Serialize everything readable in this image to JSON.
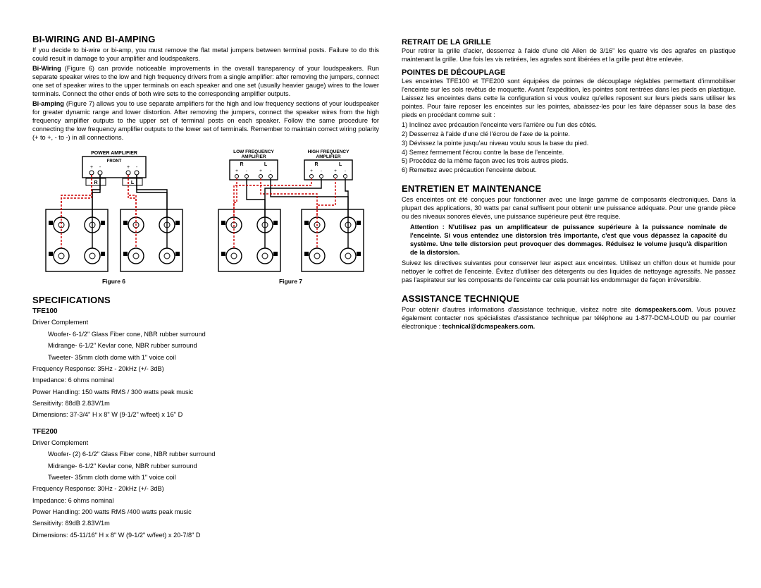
{
  "left": {
    "h_biwiring": "BI-WIRING AND BI-AMPING",
    "p1": "If you decide to bi-wire or bi-amp, you must remove the flat metal jumpers between terminal posts. Failure to do this could result in damage to your amplifier and loudspeakers.",
    "p2_bold": "Bi-Wiring",
    "p2": " (Figure 6) can provide noticeable improvements in the overall transparency of your loudspeakers. Run separate speaker wires to the low and high frequency drivers from a single amplifier: after removing the jumpers, connect one set of speaker wires to the upper terminals on each speaker and one set (usually heavier gauge) wires to the lower terminals. Connect the other ends of both wire sets to the corresponding amplifier outputs.",
    "p3_bold": "Bi-amping",
    "p3": " (Figure 7) allows you to use separate amplifiers for the high and low frequency sections of your loudspeaker for greater dynamic range and lower distortion. After removing the jumpers, connect the speaker wires from the high frequency amplifier outputs to the upper set of terminal posts on each speaker. Follow the same procedure for connecting the low frequency amplifier outputs to the lower set of terminals. Remember to maintain correct wiring polarity (+ to +, - to -) in all connections.",
    "fig6_label": "Figure 6",
    "fig7_label": "Figure 7",
    "amp_labels": {
      "power": "POWER AMPLIFIER",
      "lowfreq": "LOW FREQUENCY\nAMPLIFIER",
      "highfreq": "HIGH FREQUENCY\nAMPLIFIER",
      "front": "FRONT",
      "R": "R",
      "L": "L",
      "plus": "+",
      "minus": "-"
    },
    "h_specs": "SPECIFICATIONS",
    "tfe100": {
      "title": "TFE100",
      "lines": [
        "Driver Complement",
        "Woofer- 6-1/2\" Glass Fiber cone, NBR rubber surround",
        "Midrange- 6-1/2\" Kevlar cone, NBR rubber surround",
        "Tweeter- 35mm cloth dome with 1\" voice coil",
        "Frequency Response: 35Hz - 20kHz (+/- 3dB)",
        "Impedance: 6 ohms nominal",
        "Power Handling: 150 watts RMS / 300 watts peak music",
        "Sensitivity: 88dB 2.83V/1m",
        "Dimensions: 37-3/4\" H x 8\" W (9-1/2\" w/feet)  x 16\" D"
      ],
      "indent_idx": [
        1,
        2,
        3
      ]
    },
    "tfe200": {
      "title": "TFE200",
      "lines": [
        "Driver Complement",
        "Woofer- (2) 6-1/2\" Glass Fiber cone, NBR rubber surround",
        "Midrange- 6-1/2\" Kevlar cone, NBR rubber surround",
        "Tweeter-  35mm cloth dome with 1\" voice coil",
        "Frequency Response: 30Hz - 20kHz (+/- 3dB)",
        "Impedance: 6 ohms nominal",
        "Power Handling: 200 watts RMS /400 watts peak music",
        "Sensitivity: 89dB 2.83V/1m",
        "Dimensions: 45-11/16\" H x 8\" W (9-1/2\" w/feet) x 20-7/8\" D"
      ],
      "indent_idx": [
        1,
        2,
        3
      ]
    }
  },
  "right": {
    "h_retrait": "RETRAIT DE LA GRILLE",
    "p_retrait": "Pour retirer la grille d'acier, desserrez à l'aide d'une clé Allen de 3/16\" les quatre vis des agrafes en plastique maintenant la grille. Une fois les vis retirées, les agrafes sont libérées et la grille peut être enlevée.",
    "h_pointes": "POINTES DE DÉCOUPLAGE",
    "p_pointes": "Les enceintes TFE100 et TFE200 sont équipées de pointes de découplage réglables permettant d'immobiliser l'enceinte sur les sols revêtus de moquette. Avant l'expédition, les pointes sont rentrées dans les pieds en plastique. Laissez les enceintes dans cette la configuration si vous voulez qu'elles reposent sur leurs pieds sans utiliser les pointes. Pour faire reposer les enceintes sur les pointes, abaissez-les pour les faire dépasser sous la base des pieds en procédant comme suit :",
    "steps": [
      "1) Inclinez avec précaution l'enceinte vers l'arrière ou l'un des côtés.",
      "2) Desserrez à l'aide d'une clé l'écrou de l'axe de la pointe.",
      "3) Dévissez la pointe jusqu'au niveau voulu sous la base du pied.",
      "4) Serrez fermement l'écrou contre la base de l'enceinte.",
      "5) Procédez de la même façon avec les trois autres pieds.",
      "6) Remettez avec précaution l'enceinte debout."
    ],
    "h_entretien": "ENTRETIEN ET MAINTENANCE",
    "p_ent1": "Ces enceintes ont été conçues pour fonctionner avec une large gamme de composants électroniques. Dans la plupart des applications, 30 watts par canal suffisent pour obtenir une puissance adéquate. Pour une grande pièce ou des niveaux sonores élevés, une puissance supérieure peut être requise.",
    "p_ent_bold": "Attention : N'utilisez pas un amplificateur de puissance supérieure à la puissance nominale de l'enceinte. Si vous entendez une distorsion très importante, c'est que vous dépassez la capacité du système. Une telle distorsion peut provoquer des dommages. Réduisez le volume jusqu'à disparition de la distorsion.",
    "p_ent2": "Suivez les directives suivantes pour conserver leur aspect aux enceintes. Utilisez un chiffon doux et humide pour nettoyer le coffret de l'enceinte. Évitez d'utiliser des détergents ou des liquides de nettoyage agressifs. Ne passez pas l'aspirateur sur les composants de l'enceinte car cela pourrait les endommager de façon irréversible.",
    "h_assist": "ASSISTANCE TECHNIQUE",
    "p_assist_a": "Pour obtenir d'autres informations d'assistance technique, visitez notre site ",
    "p_assist_site": "dcmspeakers.com",
    "p_assist_b": ". Vous pouvez également contacter nos spécialistes d'assistance technique par téléphone au 1-877-DCM-LOUD ou par courrier électronique : ",
    "p_assist_email": "technical@dcmspeakers.com."
  },
  "diagram": {
    "colors": {
      "black": "#000000",
      "red": "#cc0000",
      "white": "#ffffff"
    },
    "stroke_width": 1.4,
    "dash": "3,2"
  }
}
